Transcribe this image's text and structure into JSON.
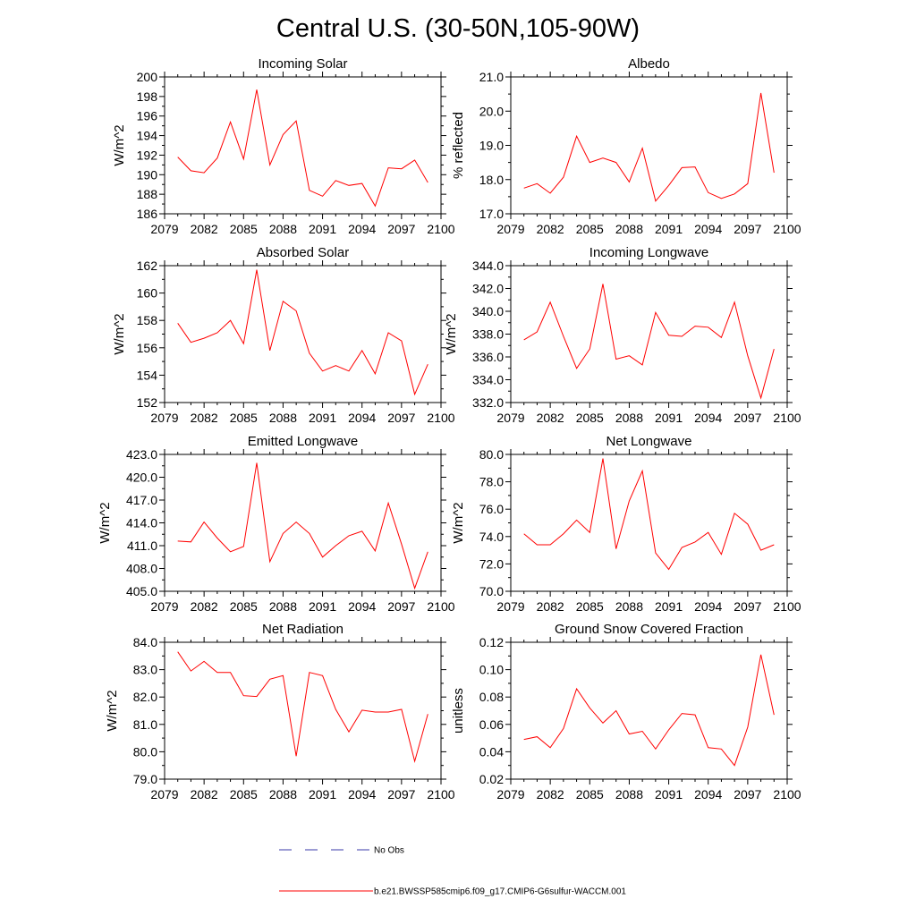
{
  "title": "Central U.S. (30-50N,105-90W)",
  "legend": [
    {
      "label": "No Obs",
      "color": "#3a3aa8",
      "style": "dashed"
    },
    {
      "label": "b.e21.BWSSP585cmip6.f09_g17.CMIP6-G6sulfur-WACCM.001",
      "color": "#ff0000",
      "style": "solid"
    }
  ],
  "chart_data": [
    {
      "type": "line",
      "title": "Incoming Solar",
      "ylabel": "W/m^2",
      "xlim": [
        2079,
        2100
      ],
      "xticks": [
        2079,
        2082,
        2085,
        2088,
        2091,
        2094,
        2097,
        2100
      ],
      "ylim": [
        186,
        200
      ],
      "yticks": [
        "186",
        "188",
        "190",
        "192",
        "194",
        "196",
        "198",
        "200"
      ],
      "x": [
        2080,
        2081,
        2082,
        2083,
        2084,
        2085,
        2086,
        2087,
        2088,
        2089,
        2090,
        2091,
        2092,
        2093,
        2094,
        2095,
        2096,
        2097,
        2098,
        2099
      ],
      "series": [
        {
          "color": "#ff0000",
          "values": [
            191.8,
            190.4,
            190.2,
            191.7,
            195.4,
            191.6,
            198.7,
            191.0,
            194.1,
            195.5,
            188.4,
            187.8,
            189.4,
            188.9,
            189.1,
            186.8,
            190.7,
            190.6,
            191.5,
            189.2
          ]
        }
      ]
    },
    {
      "type": "line",
      "title": "Albedo",
      "ylabel": "% reflected",
      "xlim": [
        2079,
        2100
      ],
      "xticks": [
        2079,
        2082,
        2085,
        2088,
        2091,
        2094,
        2097,
        2100
      ],
      "ylim": [
        17.0,
        21.0
      ],
      "yticks": [
        "17.0",
        "18.0",
        "19.0",
        "20.0",
        "21.0"
      ],
      "x": [
        2080,
        2081,
        2082,
        2083,
        2084,
        2085,
        2086,
        2087,
        2088,
        2089,
        2090,
        2091,
        2092,
        2093,
        2094,
        2095,
        2096,
        2097,
        2098,
        2099
      ],
      "series": [
        {
          "color": "#ff0000",
          "values": [
            17.75,
            17.88,
            17.6,
            18.07,
            19.27,
            18.5,
            18.63,
            18.5,
            17.93,
            18.92,
            17.37,
            17.83,
            18.35,
            18.37,
            17.62,
            17.45,
            17.58,
            17.88,
            20.53,
            18.2
          ]
        }
      ]
    },
    {
      "type": "line",
      "title": "Absorbed Solar",
      "ylabel": "W/m^2",
      "xlim": [
        2079,
        2100
      ],
      "xticks": [
        2079,
        2082,
        2085,
        2088,
        2091,
        2094,
        2097,
        2100
      ],
      "ylim": [
        152,
        162
      ],
      "yticks": [
        "152",
        "154",
        "156",
        "158",
        "160",
        "162"
      ],
      "x": [
        2080,
        2081,
        2082,
        2083,
        2084,
        2085,
        2086,
        2087,
        2088,
        2089,
        2090,
        2091,
        2092,
        2093,
        2094,
        2095,
        2096,
        2097,
        2098,
        2099
      ],
      "series": [
        {
          "color": "#ff0000",
          "values": [
            157.8,
            156.4,
            156.7,
            157.1,
            158.0,
            156.3,
            161.7,
            155.8,
            159.4,
            158.7,
            155.6,
            154.3,
            154.7,
            154.3,
            155.8,
            154.1,
            157.1,
            156.5,
            152.6,
            154.8
          ]
        }
      ]
    },
    {
      "type": "line",
      "title": "Incoming Longwave",
      "ylabel": "W/m^2",
      "xlim": [
        2079,
        2100
      ],
      "xticks": [
        2079,
        2082,
        2085,
        2088,
        2091,
        2094,
        2097,
        2100
      ],
      "ylim": [
        332.0,
        344.0
      ],
      "yticks": [
        "332.0",
        "334.0",
        "336.0",
        "338.0",
        "340.0",
        "342.0",
        "344.0"
      ],
      "x": [
        2080,
        2081,
        2082,
        2083,
        2084,
        2085,
        2086,
        2087,
        2088,
        2089,
        2090,
        2091,
        2092,
        2093,
        2094,
        2095,
        2096,
        2097,
        2098,
        2099
      ],
      "series": [
        {
          "color": "#ff0000",
          "values": [
            337.5,
            338.2,
            340.8,
            337.8,
            335.0,
            336.7,
            342.4,
            335.8,
            336.1,
            335.3,
            339.9,
            337.9,
            337.8,
            338.7,
            338.6,
            337.7,
            340.8,
            336.1,
            332.4,
            336.7
          ]
        }
      ]
    },
    {
      "type": "line",
      "title": "Emitted Longwave",
      "ylabel": "W/m^2",
      "xlim": [
        2079,
        2100
      ],
      "xticks": [
        2079,
        2082,
        2085,
        2088,
        2091,
        2094,
        2097,
        2100
      ],
      "ylim": [
        405.0,
        423.0
      ],
      "yticks": [
        "405.0",
        "408.0",
        "411.0",
        "414.0",
        "417.0",
        "420.0",
        "423.0"
      ],
      "x": [
        2080,
        2081,
        2082,
        2083,
        2084,
        2085,
        2086,
        2087,
        2088,
        2089,
        2090,
        2091,
        2092,
        2093,
        2094,
        2095,
        2096,
        2097,
        2098,
        2099
      ],
      "series": [
        {
          "color": "#ff0000",
          "values": [
            411.6,
            411.5,
            414.1,
            412.0,
            410.2,
            410.9,
            421.9,
            408.9,
            412.6,
            414.1,
            412.6,
            409.5,
            411.0,
            412.3,
            412.9,
            410.3,
            416.6,
            411.2,
            405.4,
            410.2
          ]
        }
      ]
    },
    {
      "type": "line",
      "title": "Net Longwave",
      "ylabel": "W/m^2",
      "xlim": [
        2079,
        2100
      ],
      "xticks": [
        2079,
        2082,
        2085,
        2088,
        2091,
        2094,
        2097,
        2100
      ],
      "ylim": [
        70.0,
        80.0
      ],
      "yticks": [
        "70.0",
        "72.0",
        "74.0",
        "76.0",
        "78.0",
        "80.0"
      ],
      "x": [
        2080,
        2081,
        2082,
        2083,
        2084,
        2085,
        2086,
        2087,
        2088,
        2089,
        2090,
        2091,
        2092,
        2093,
        2094,
        2095,
        2096,
        2097,
        2098,
        2099
      ],
      "series": [
        {
          "color": "#ff0000",
          "values": [
            74.2,
            73.4,
            73.4,
            74.2,
            75.2,
            74.3,
            79.7,
            73.1,
            76.6,
            78.8,
            72.8,
            71.6,
            73.2,
            73.6,
            74.3,
            72.7,
            75.7,
            74.9,
            73.0,
            73.4
          ]
        }
      ]
    },
    {
      "type": "line",
      "title": "Net Radiation",
      "ylabel": "W/m^2",
      "xlim": [
        2079,
        2100
      ],
      "xticks": [
        2079,
        2082,
        2085,
        2088,
        2091,
        2094,
        2097,
        2100
      ],
      "ylim": [
        79.0,
        84.0
      ],
      "yticks": [
        "79.0",
        "80.0",
        "81.0",
        "82.0",
        "83.0",
        "84.0"
      ],
      "x": [
        2080,
        2081,
        2082,
        2083,
        2084,
        2085,
        2086,
        2087,
        2088,
        2089,
        2090,
        2091,
        2092,
        2093,
        2094,
        2095,
        2096,
        2097,
        2098,
        2099
      ],
      "series": [
        {
          "color": "#ff0000",
          "values": [
            83.65,
            82.95,
            83.3,
            82.9,
            82.9,
            82.05,
            82.02,
            82.65,
            82.78,
            79.84,
            82.9,
            82.78,
            81.55,
            80.73,
            81.52,
            81.45,
            81.45,
            81.55,
            79.65,
            81.38
          ]
        }
      ]
    },
    {
      "type": "line",
      "title": "Ground Snow Covered Fraction",
      "ylabel": "unitless",
      "xlim": [
        2079,
        2100
      ],
      "xticks": [
        2079,
        2082,
        2085,
        2088,
        2091,
        2094,
        2097,
        2100
      ],
      "ylim": [
        0.02,
        0.12
      ],
      "yticks": [
        "0.02",
        "0.04",
        "0.06",
        "0.08",
        "0.10",
        "0.12"
      ],
      "x": [
        2080,
        2081,
        2082,
        2083,
        2084,
        2085,
        2086,
        2087,
        2088,
        2089,
        2090,
        2091,
        2092,
        2093,
        2094,
        2095,
        2096,
        2097,
        2098,
        2099
      ],
      "series": [
        {
          "color": "#ff0000",
          "values": [
            0.049,
            0.051,
            0.043,
            0.057,
            0.086,
            0.072,
            0.061,
            0.07,
            0.053,
            0.055,
            0.042,
            0.056,
            0.068,
            0.067,
            0.043,
            0.042,
            0.03,
            0.058,
            0.111,
            0.067
          ]
        }
      ]
    }
  ]
}
